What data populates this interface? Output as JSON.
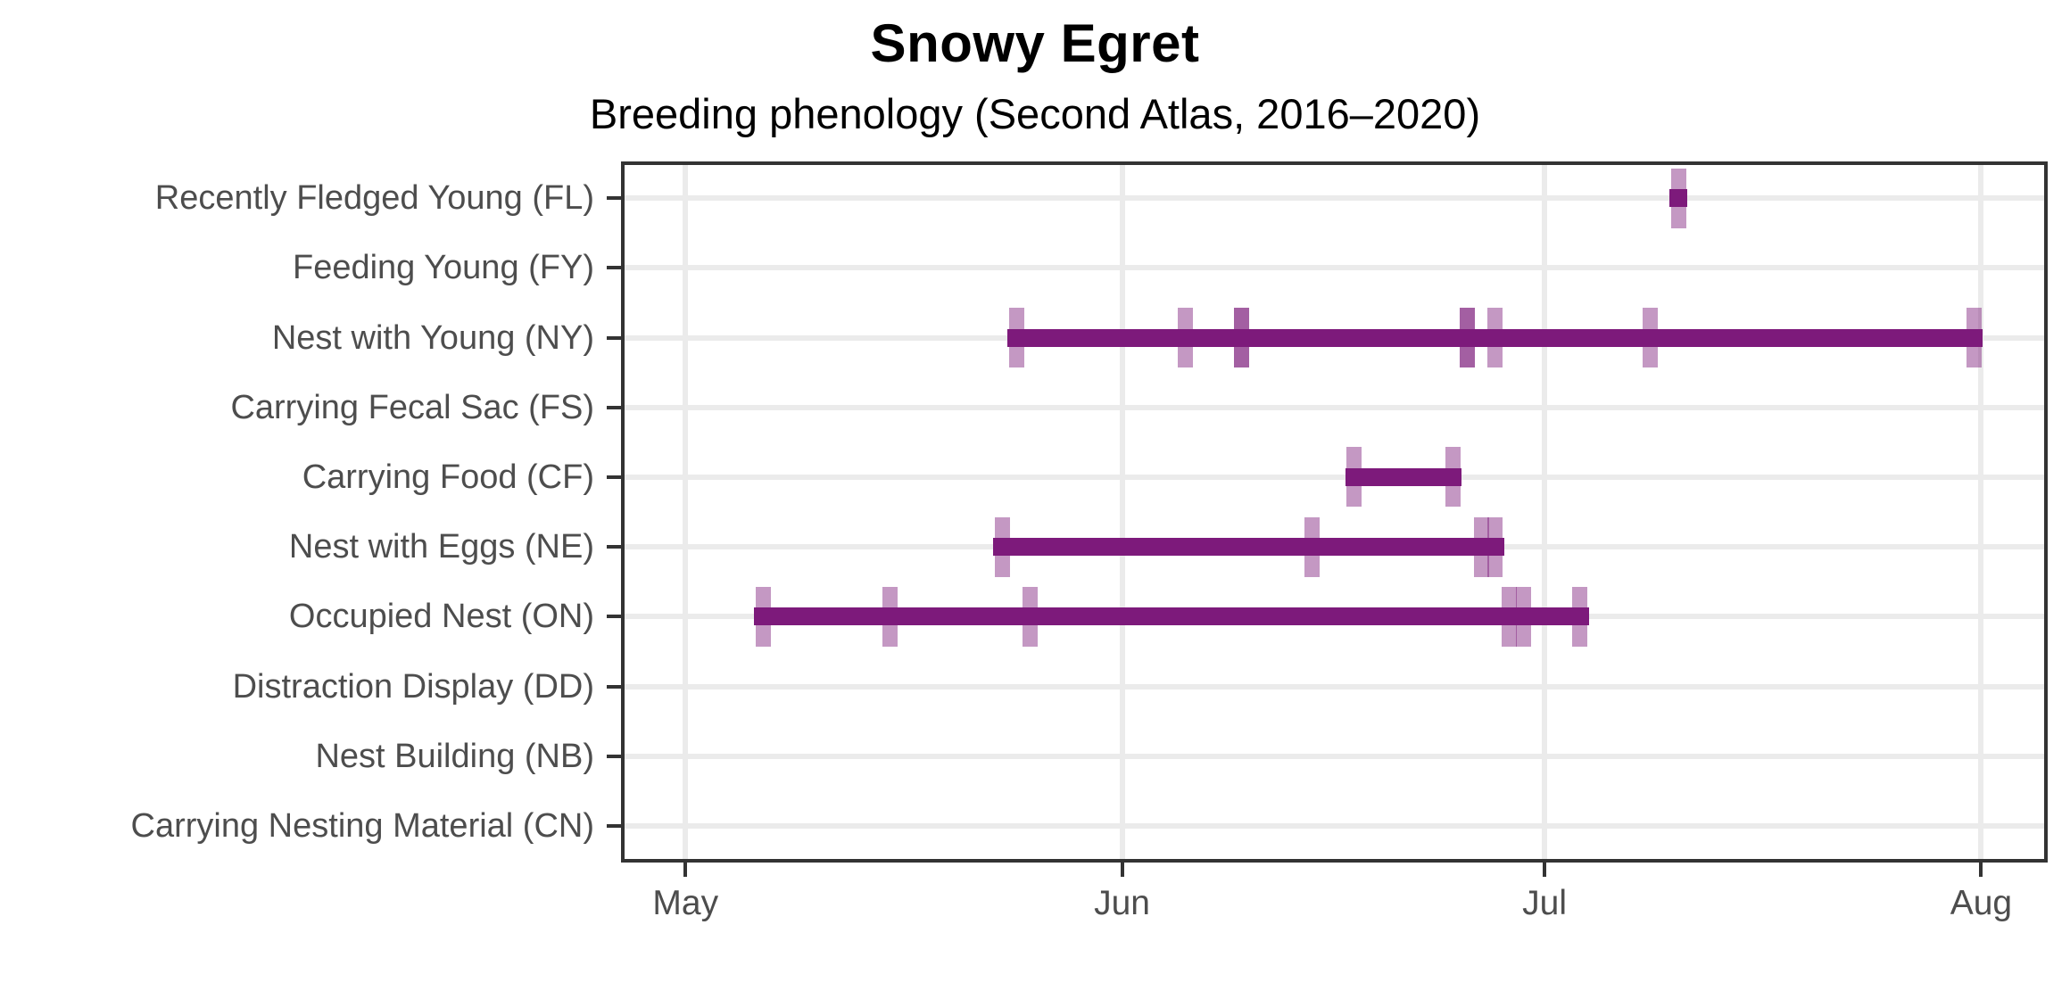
{
  "header": {
    "title": "Snowy Egret",
    "subtitle": "Breeding phenology (Second Atlas, 2016–2020)"
  },
  "colors": {
    "bar": "#7d1a7b",
    "tick_rgba": "rgba(125,26,123,0.45)",
    "axis_text": "#4d4d4d",
    "grid": "#ebebeb",
    "panel_border": "#333333",
    "title_text": "#000000"
  },
  "chart_data": {
    "type": "gantt-timeline",
    "title": "Snowy Egret",
    "subtitle": "Breeding phenology (Second Atlas, 2016–2020)",
    "x_axis": {
      "tick_labels": [
        "May",
        "Jun",
        "Jul",
        "Aug"
      ],
      "tick_day_offsets": [
        0,
        31,
        61,
        92
      ],
      "domain_day_offsets": [
        -4.45,
        96.6
      ],
      "grid": true
    },
    "y_axis": {
      "categories_top_to_bottom": [
        "Recently Fledged Young (FL)",
        "Feeding Young (FY)",
        "Nest with Young (NY)",
        "Carrying Fecal Sac (FS)",
        "Carrying Food (CF)",
        "Nest with Eggs (NE)",
        "Occupied Nest (ON)",
        "Distraction Display (DD)",
        "Nest Building (NB)",
        "Carrying Nesting Material (CN)"
      ]
    },
    "series": [
      {
        "label": "Recently Fledged Young (FL)",
        "code": "FL",
        "range": [
          "Jul 10",
          "Jul 10"
        ],
        "observations": [
          {
            "date": "Jul 10",
            "count": 1
          }
        ]
      },
      {
        "label": "Feeding Young (FY)",
        "code": "FY",
        "range": null,
        "observations": []
      },
      {
        "label": "Nest with Young (NY)",
        "code": "NY",
        "range": [
          "May 24",
          "Jul 31"
        ],
        "observations": [
          {
            "date": "May 24",
            "count": 1
          },
          {
            "date": "Jun 5",
            "count": 1
          },
          {
            "date": "Jun 9",
            "count": 2
          },
          {
            "date": "Jun 25",
            "count": 2
          },
          {
            "date": "Jun 27",
            "count": 1
          },
          {
            "date": "Jul 8",
            "count": 1
          },
          {
            "date": "Jul 31",
            "count": 1
          }
        ]
      },
      {
        "label": "Carrying Fecal Sac (FS)",
        "code": "FS",
        "range": null,
        "observations": []
      },
      {
        "label": "Carrying Food (CF)",
        "code": "CF",
        "range": [
          "Jun 17",
          "Jun 24"
        ],
        "observations": [
          {
            "date": "Jun 17",
            "count": 1
          },
          {
            "date": "Jun 24",
            "count": 1
          }
        ]
      },
      {
        "label": "Nest with Eggs (NE)",
        "code": "NE",
        "range": [
          "May 23",
          "Jun 27"
        ],
        "observations": [
          {
            "date": "May 23",
            "count": 1
          },
          {
            "date": "Jun 14",
            "count": 1
          },
          {
            "date": "Jun 26",
            "count": 1
          },
          {
            "date": "Jun 27",
            "count": 1
          }
        ]
      },
      {
        "label": "Occupied Nest (ON)",
        "code": "ON",
        "range": [
          "May 6",
          "Jul 3"
        ],
        "observations": [
          {
            "date": "May 6",
            "count": 1
          },
          {
            "date": "May 15",
            "count": 1
          },
          {
            "date": "May 25",
            "count": 1
          },
          {
            "date": "Jun 28",
            "count": 1
          },
          {
            "date": "Jun 29",
            "count": 1
          },
          {
            "date": "Jul 3",
            "count": 1
          }
        ]
      },
      {
        "label": "Distraction Display (DD)",
        "code": "DD",
        "range": null,
        "observations": []
      },
      {
        "label": "Nest Building (NB)",
        "code": "NB",
        "range": null,
        "observations": []
      },
      {
        "label": "Carrying Nesting Material (CN)",
        "code": "CN",
        "range": null,
        "observations": []
      }
    ]
  }
}
